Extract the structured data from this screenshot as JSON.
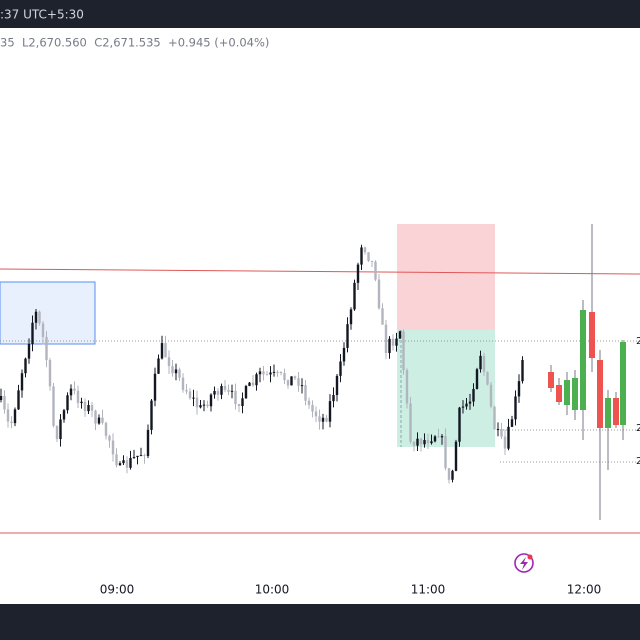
{
  "header": {
    "clock": ":37 UTC+5:30"
  },
  "legend": {
    "ohlc": "35  L2,670.560  C2,671.535  +0.945 (+0.04%)"
  },
  "time_axis": [
    "09:00",
    "10:00",
    "11:00",
    "12:00"
  ],
  "price_axis": [
    "2",
    "2",
    "2"
  ]
}
